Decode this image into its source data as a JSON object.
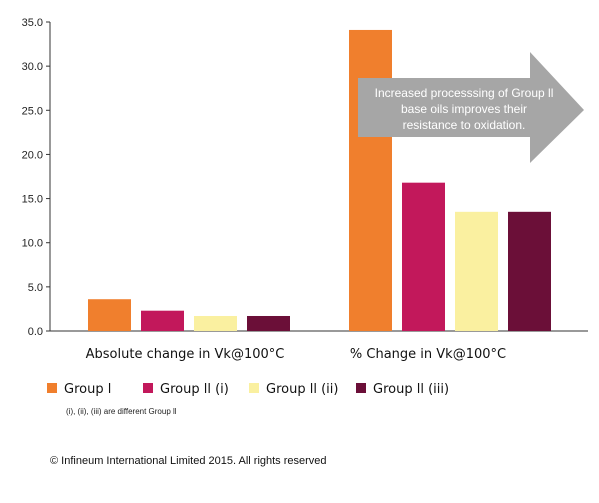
{
  "chart_data": {
    "type": "bar",
    "categories": [
      "Absolute change in Vk@100°C",
      "% Change in Vk@100°C"
    ],
    "series": [
      {
        "name": "Group l",
        "values": [
          3.6,
          34.1
        ],
        "color": "#f07f2d"
      },
      {
        "name": "Group ll (i)",
        "values": [
          2.3,
          16.8
        ],
        "color": "#c2185b"
      },
      {
        "name": "Group ll (ii)",
        "values": [
          1.7,
          13.5
        ],
        "color": "#faf0a0"
      },
      {
        "name": "Group ll (iii)",
        "values": [
          1.7,
          13.5
        ],
        "color": "#6b0f38"
      }
    ],
    "ylim": [
      0,
      35
    ],
    "yticks": [
      "0.0",
      "5.0",
      "10.0",
      "15.0",
      "20.0",
      "25.0",
      "30.0",
      "35.0"
    ],
    "grid": false,
    "legend_placement": "bottom",
    "annotation": {
      "lines": [
        "Increased processsing of Group ll",
        "base oils improves their",
        "resistance to oxidation."
      ],
      "color": "#a6a6a6"
    },
    "note": "(i), (ii), (iii) are different Group ll"
  },
  "copyright": "© Infineum International Limited 2015. All rights reserved"
}
